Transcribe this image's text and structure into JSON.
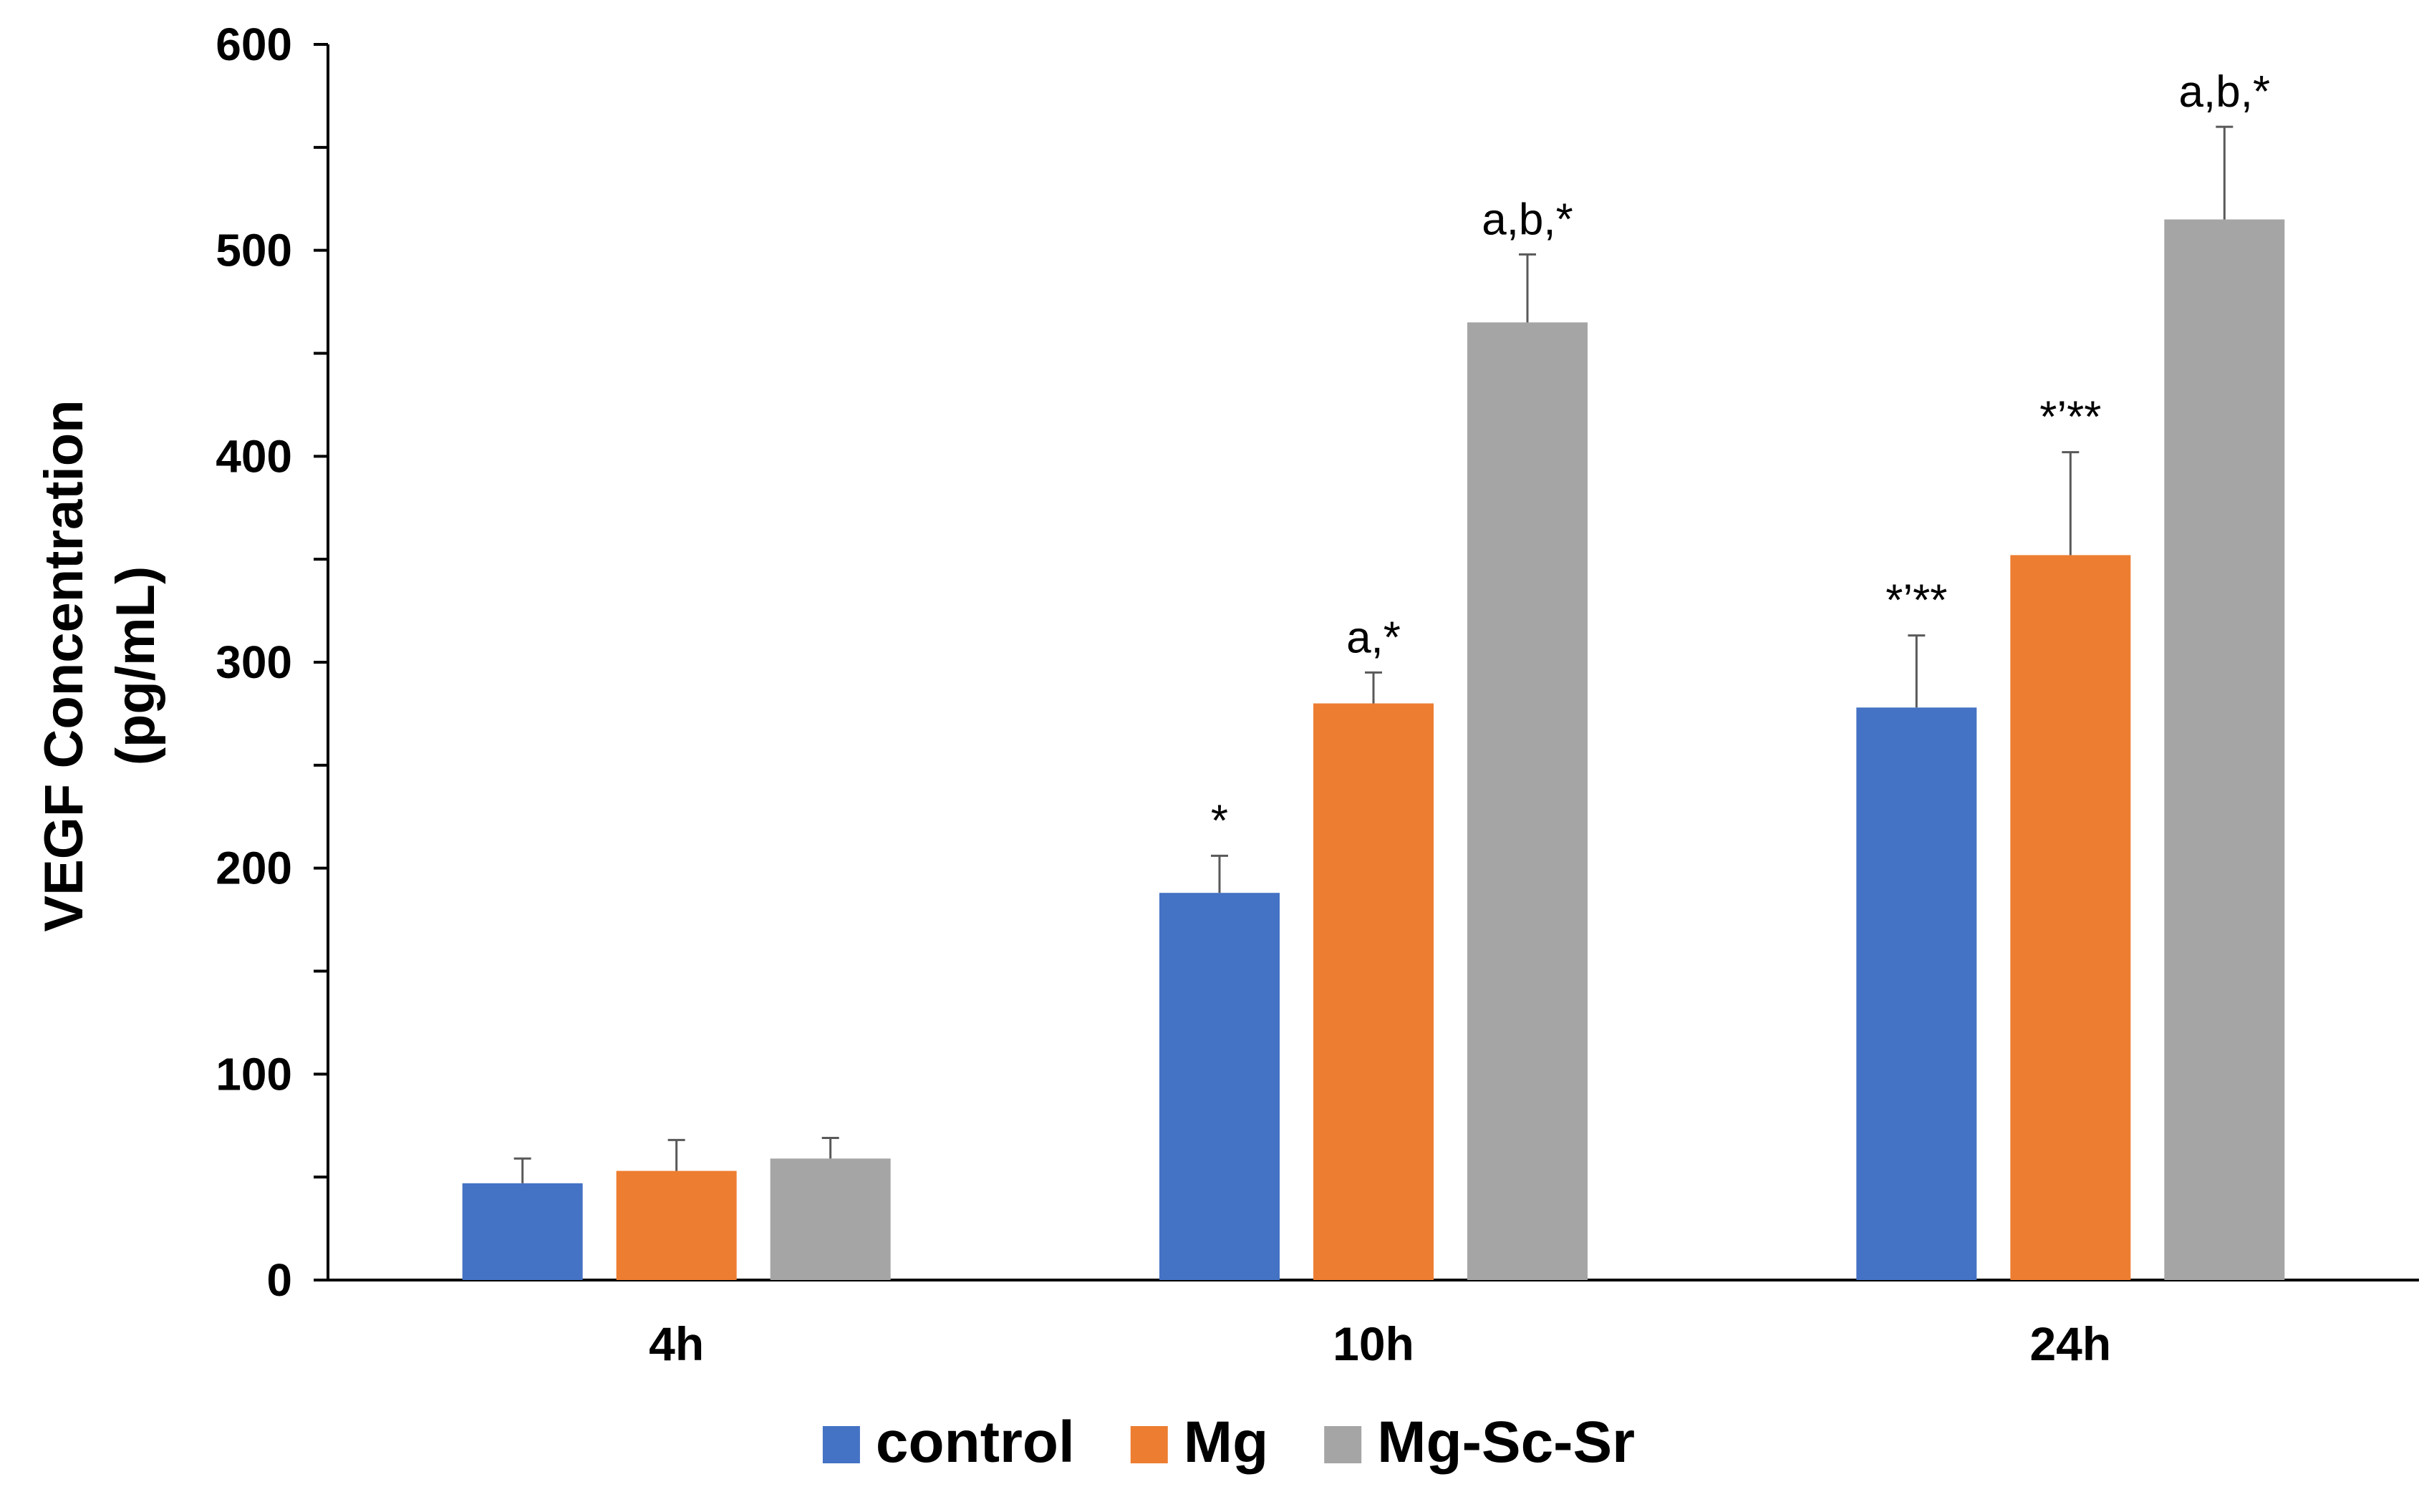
{
  "chart_data": {
    "type": "bar",
    "title": "",
    "xlabel": "",
    "ylabel_line1": "VEGF Concentration",
    "ylabel_line2": "(pg/mL)",
    "ylim": [
      0,
      600
    ],
    "yticks": [
      0,
      100,
      200,
      300,
      400,
      500,
      600
    ],
    "categories": [
      "4h",
      "10h",
      "24h"
    ],
    "series": [
      {
        "name": "control",
        "color": "#4472c4",
        "values": [
          47,
          188,
          278
        ],
        "errors": [
          12,
          18,
          35
        ],
        "annotations": [
          "",
          "*",
          "*’**"
        ]
      },
      {
        "name": "Mg",
        "color": "#ed7d31",
        "values": [
          53,
          280,
          352
        ],
        "errors": [
          15,
          15,
          50
        ],
        "annotations": [
          "",
          "a,*",
          "*’**"
        ]
      },
      {
        "name": "Mg-Sc-Sr",
        "color": "#a5a5a5",
        "values": [
          59,
          465,
          515
        ],
        "errors": [
          10,
          33,
          45
        ],
        "annotations": [
          "",
          "a,b,*",
          "a,b,*"
        ]
      }
    ],
    "legend_position": "bottom",
    "grid": false
  }
}
